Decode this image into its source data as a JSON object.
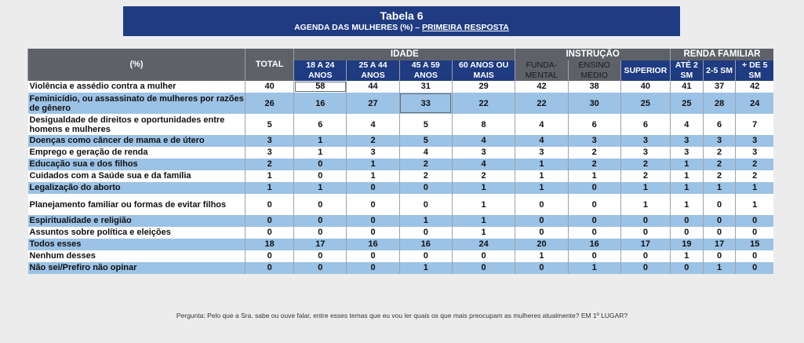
{
  "title": "Tabela 6",
  "subtitle_prefix": "AGENDA DAS MULHERES (%) – ",
  "subtitle_underlined": "PRIMEIRA RESPOSTA",
  "header": {
    "pct": "(%)",
    "total": "TOTAL",
    "groups": [
      "IDADE",
      "INSTRUÇÃO",
      "RENDA FAMILIAR"
    ],
    "columns": [
      "18 A 24 ANOS",
      "25 A 44 ANOS",
      "45 A 59 ANOS",
      "60 ANOS OU MAIS",
      "FUNDA-MENTAL",
      "ENSINO MÉDIO",
      "SUPERIOR",
      "ATÉ 2 SM",
      "2-5 SM",
      "+ DE 5 SM"
    ]
  },
  "rows": [
    {
      "label": "Violência e assédio contra a mulher",
      "values": [
        "40",
        "58",
        "44",
        "31",
        "29",
        "42",
        "38",
        "40",
        "41",
        "37",
        "42"
      ]
    },
    {
      "label": "Feminicídio, ou assassinato de mulheres por razões de gênero",
      "values": [
        "26",
        "16",
        "27",
        "33",
        "22",
        "22",
        "30",
        "25",
        "25",
        "28",
        "24"
      ]
    },
    {
      "label": "Desigualdade de direitos e oportunidades entre homens e mulheres",
      "values": [
        "5",
        "6",
        "4",
        "5",
        "8",
        "4",
        "6",
        "6",
        "4",
        "6",
        "7"
      ]
    },
    {
      "label": "Doenças como câncer de mama e de útero",
      "values": [
        "3",
        "1",
        "2",
        "5",
        "4",
        "4",
        "3",
        "3",
        "3",
        "3",
        "3"
      ]
    },
    {
      "label": "Emprego e geração de renda",
      "values": [
        "3",
        "1",
        "3",
        "4",
        "3",
        "3",
        "2",
        "3",
        "3",
        "2",
        "3"
      ]
    },
    {
      "label": "Educação sua e dos filhos",
      "values": [
        "2",
        "0",
        "1",
        "2",
        "4",
        "1",
        "2",
        "2",
        "1",
        "2",
        "2"
      ]
    },
    {
      "label": "Cuidados com a Saúde sua e da família",
      "values": [
        "1",
        "0",
        "1",
        "2",
        "2",
        "1",
        "1",
        "2",
        "1",
        "2",
        "2"
      ]
    },
    {
      "label": "Legalização do aborto",
      "values": [
        "1",
        "1",
        "0",
        "0",
        "1",
        "1",
        "0",
        "1",
        "1",
        "1",
        "1"
      ]
    },
    {
      "label": "Planejamento familiar ou formas de evitar filhos",
      "values": [
        "0",
        "0",
        "0",
        "0",
        "1",
        "0",
        "0",
        "1",
        "1",
        "0",
        "1"
      ]
    },
    {
      "label": "Espiritualidade e religião",
      "values": [
        "0",
        "0",
        "0",
        "1",
        "1",
        "0",
        "0",
        "0",
        "0",
        "0",
        "0"
      ]
    },
    {
      "label": "Assuntos sobre política e eleições",
      "values": [
        "0",
        "0",
        "0",
        "0",
        "1",
        "0",
        "0",
        "0",
        "0",
        "0",
        "0"
      ]
    },
    {
      "label": "Todos esses",
      "values": [
        "18",
        "17",
        "16",
        "16",
        "24",
        "20",
        "16",
        "17",
        "19",
        "17",
        "15"
      ]
    },
    {
      "label": "Nenhum desses",
      "values": [
        "0",
        "0",
        "0",
        "0",
        "0",
        "1",
        "0",
        "0",
        "1",
        "0",
        "0"
      ]
    },
    {
      "label": "Não sei/Prefiro não opinar",
      "values": [
        "0",
        "0",
        "0",
        "1",
        "0",
        "0",
        "1",
        "0",
        "0",
        "1",
        "0"
      ]
    }
  ],
  "footer": "Pergunta: Pelo que a Sra. sabe ou ouve falar, entre esses temas que eu vou ler quais os que mais preocupam as mulheres atualmente?  EM 1º LUGAR?"
}
